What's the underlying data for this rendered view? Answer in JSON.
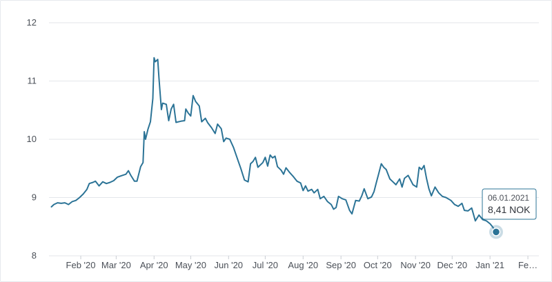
{
  "chart_data": {
    "type": "line",
    "title": "",
    "xlabel": "",
    "ylabel": "",
    "ylim": [
      8,
      12
    ],
    "xlim": [
      "2020-01-06",
      "2021-02-10"
    ],
    "yticks": [
      "8",
      "9",
      "10",
      "11",
      "12"
    ],
    "xticks": [
      {
        "date": "2020-02-01",
        "label": "Feb '20"
      },
      {
        "date": "2020-03-01",
        "label": "Mar '20"
      },
      {
        "date": "2020-04-01",
        "label": "Apr '20"
      },
      {
        "date": "2020-05-01",
        "label": "May '20"
      },
      {
        "date": "2020-06-01",
        "label": "Jun '20"
      },
      {
        "date": "2020-07-01",
        "label": "Jul '20"
      },
      {
        "date": "2020-08-01",
        "label": "Aug '20"
      },
      {
        "date": "2020-09-01",
        "label": "Sep '20"
      },
      {
        "date": "2020-10-01",
        "label": "Oct '20"
      },
      {
        "date": "2020-11-01",
        "label": "Nov '20"
      },
      {
        "date": "2020-12-01",
        "label": "Dec '20"
      },
      {
        "date": "2021-01-01",
        "label": "Jan '21"
      },
      {
        "date": "2021-02-01",
        "label": "Fe…"
      }
    ],
    "grid": true,
    "color": "#2b7396",
    "series": [
      {
        "points": [
          [
            "2020-01-08",
            8.84
          ],
          [
            "2020-01-10",
            8.88
          ],
          [
            "2020-01-13",
            8.91
          ],
          [
            "2020-01-16",
            8.9
          ],
          [
            "2020-01-19",
            8.91
          ],
          [
            "2020-01-22",
            8.88
          ],
          [
            "2020-01-25",
            8.93
          ],
          [
            "2020-01-28",
            8.95
          ],
          [
            "2020-01-31",
            9.0
          ],
          [
            "2020-02-03",
            9.06
          ],
          [
            "2020-02-06",
            9.14
          ],
          [
            "2020-02-08",
            9.24
          ],
          [
            "2020-02-11",
            9.26
          ],
          [
            "2020-02-13",
            9.28
          ],
          [
            "2020-02-16",
            9.2
          ],
          [
            "2020-02-19",
            9.27
          ],
          [
            "2020-02-22",
            9.24
          ],
          [
            "2020-02-25",
            9.26
          ],
          [
            "2020-02-28",
            9.29
          ],
          [
            "2020-03-02",
            9.35
          ],
          [
            "2020-03-06",
            9.38
          ],
          [
            "2020-03-09",
            9.4
          ],
          [
            "2020-03-11",
            9.46
          ],
          [
            "2020-03-13",
            9.38
          ],
          [
            "2020-03-16",
            9.28
          ],
          [
            "2020-03-18",
            9.28
          ],
          [
            "2020-03-21",
            9.53
          ],
          [
            "2020-03-23",
            9.6
          ],
          [
            "2020-03-24",
            10.13
          ],
          [
            "2020-03-25",
            10.0
          ],
          [
            "2020-03-27",
            10.17
          ],
          [
            "2020-03-29",
            10.3
          ],
          [
            "2020-03-31",
            10.7
          ],
          [
            "2020-04-01",
            11.4
          ],
          [
            "2020-04-02",
            11.33
          ],
          [
            "2020-04-04",
            11.37
          ],
          [
            "2020-04-05",
            11.05
          ],
          [
            "2020-04-07",
            10.51
          ],
          [
            "2020-04-08",
            10.62
          ],
          [
            "2020-04-11",
            10.6
          ],
          [
            "2020-04-13",
            10.32
          ],
          [
            "2020-04-15",
            10.52
          ],
          [
            "2020-04-17",
            10.6
          ],
          [
            "2020-04-19",
            10.29
          ],
          [
            "2020-04-23",
            10.31
          ],
          [
            "2020-04-26",
            10.32
          ],
          [
            "2020-04-27",
            10.52
          ],
          [
            "2020-04-29",
            10.45
          ],
          [
            "2020-05-01",
            10.4
          ],
          [
            "2020-05-03",
            10.75
          ],
          [
            "2020-05-05",
            10.65
          ],
          [
            "2020-05-08",
            10.57
          ],
          [
            "2020-05-10",
            10.3
          ],
          [
            "2020-05-13",
            10.36
          ],
          [
            "2020-05-15",
            10.28
          ],
          [
            "2020-05-18",
            10.2
          ],
          [
            "2020-05-21",
            10.1
          ],
          [
            "2020-05-23",
            10.26
          ],
          [
            "2020-05-26",
            10.18
          ],
          [
            "2020-05-28",
            9.96
          ],
          [
            "2020-05-30",
            10.02
          ],
          [
            "2020-06-02",
            10.0
          ],
          [
            "2020-06-05",
            9.86
          ],
          [
            "2020-06-09",
            9.62
          ],
          [
            "2020-06-11",
            9.5
          ],
          [
            "2020-06-14",
            9.3
          ],
          [
            "2020-06-17",
            9.27
          ],
          [
            "2020-06-19",
            9.58
          ],
          [
            "2020-06-21",
            9.62
          ],
          [
            "2020-06-23",
            9.69
          ],
          [
            "2020-06-25",
            9.52
          ],
          [
            "2020-06-29",
            9.6
          ],
          [
            "2020-07-01",
            9.69
          ],
          [
            "2020-07-03",
            9.54
          ],
          [
            "2020-07-05",
            9.73
          ],
          [
            "2020-07-07",
            9.68
          ],
          [
            "2020-07-09",
            9.71
          ],
          [
            "2020-07-11",
            9.53
          ],
          [
            "2020-07-14",
            9.47
          ],
          [
            "2020-07-16",
            9.4
          ],
          [
            "2020-07-18",
            9.51
          ],
          [
            "2020-07-21",
            9.43
          ],
          [
            "2020-07-24",
            9.36
          ],
          [
            "2020-07-27",
            9.28
          ],
          [
            "2020-07-30",
            9.25
          ],
          [
            "2020-08-01",
            9.12
          ],
          [
            "2020-08-03",
            9.2
          ],
          [
            "2020-08-05",
            9.11
          ],
          [
            "2020-08-08",
            9.14
          ],
          [
            "2020-08-10",
            9.08
          ],
          [
            "2020-08-13",
            9.14
          ],
          [
            "2020-08-15",
            8.98
          ],
          [
            "2020-08-18",
            9.02
          ],
          [
            "2020-08-21",
            8.93
          ],
          [
            "2020-08-24",
            8.88
          ],
          [
            "2020-08-26",
            8.8
          ],
          [
            "2020-08-28",
            8.83
          ],
          [
            "2020-08-30",
            9.02
          ],
          [
            "2020-09-02",
            8.98
          ],
          [
            "2020-09-05",
            8.96
          ],
          [
            "2020-09-08",
            8.78
          ],
          [
            "2020-09-10",
            8.72
          ],
          [
            "2020-09-13",
            8.95
          ],
          [
            "2020-09-16",
            8.94
          ],
          [
            "2020-09-18",
            9.03
          ],
          [
            "2020-09-20",
            9.15
          ],
          [
            "2020-09-23",
            8.98
          ],
          [
            "2020-09-26",
            9.01
          ],
          [
            "2020-09-28",
            9.1
          ],
          [
            "2020-09-30",
            9.26
          ],
          [
            "2020-10-02",
            9.42
          ],
          [
            "2020-10-04",
            9.58
          ],
          [
            "2020-10-06",
            9.52
          ],
          [
            "2020-10-08",
            9.48
          ],
          [
            "2020-10-11",
            9.32
          ],
          [
            "2020-10-13",
            9.28
          ],
          [
            "2020-10-16",
            9.22
          ],
          [
            "2020-10-19",
            9.32
          ],
          [
            "2020-10-21",
            9.18
          ],
          [
            "2020-10-23",
            9.33
          ],
          [
            "2020-10-26",
            9.38
          ],
          [
            "2020-10-28",
            9.3
          ],
          [
            "2020-10-30",
            9.22
          ],
          [
            "2020-11-02",
            9.18
          ],
          [
            "2020-11-04",
            9.52
          ],
          [
            "2020-11-06",
            9.48
          ],
          [
            "2020-11-08",
            9.55
          ],
          [
            "2020-11-10",
            9.33
          ],
          [
            "2020-11-12",
            9.15
          ],
          [
            "2020-11-14",
            9.03
          ],
          [
            "2020-11-17",
            9.18
          ],
          [
            "2020-11-20",
            9.08
          ],
          [
            "2020-11-23",
            9.02
          ],
          [
            "2020-11-26",
            9.0
          ],
          [
            "2020-11-30",
            8.95
          ],
          [
            "2020-12-03",
            8.88
          ],
          [
            "2020-12-06",
            8.85
          ],
          [
            "2020-12-09",
            8.9
          ],
          [
            "2020-12-11",
            8.78
          ],
          [
            "2020-12-14",
            8.77
          ],
          [
            "2020-12-17",
            8.82
          ],
          [
            "2020-12-20",
            8.6
          ],
          [
            "2020-12-23",
            8.7
          ],
          [
            "2020-12-26",
            8.62
          ],
          [
            "2020-12-29",
            8.6
          ],
          [
            "2021-01-01",
            8.55
          ],
          [
            "2021-01-03",
            8.5
          ],
          [
            "2021-01-06",
            8.41
          ]
        ]
      }
    ],
    "tooltip": {
      "date": "06.01.2021",
      "value": "8,41 NOK"
    }
  }
}
